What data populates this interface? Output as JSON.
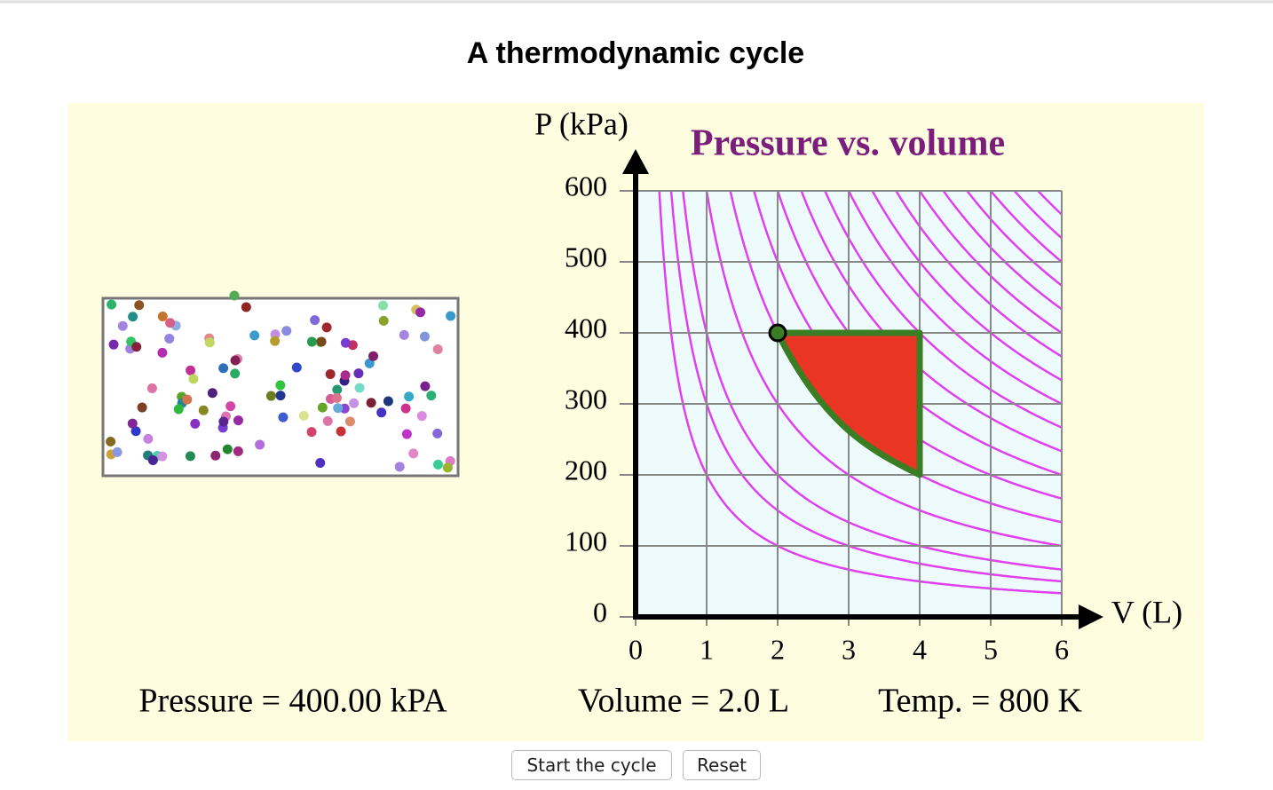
{
  "header": {
    "title": "A thermodynamic cycle"
  },
  "chart_data": {
    "type": "pv-cycle",
    "title": "Pressure vs. volume",
    "x_label": "V (L)",
    "y_label": "P (kPa)",
    "xlim": [
      0,
      6
    ],
    "xticks": [
      0,
      1,
      2,
      3,
      4,
      5,
      6
    ],
    "ylim": [
      0,
      600
    ],
    "yticks": [
      0,
      100,
      200,
      300,
      400,
      500,
      600
    ],
    "grid": true,
    "isotherms": [
      200,
      300,
      400,
      600,
      800,
      1000,
      1200,
      1400,
      1600,
      1800,
      2000,
      2200,
      2400,
      2600,
      2800,
      3000,
      3200,
      3400,
      3600
    ],
    "isotherm_color": "#e040f0",
    "cycle": {
      "x": [
        2,
        4,
        4
      ],
      "y": [
        400,
        400,
        200
      ],
      "fill": "#e83524",
      "stroke": "#3b7d23"
    },
    "state": {
      "x": 2,
      "y": 400
    }
  },
  "readouts": {
    "pressure": "Pressure = 400.00 kPA",
    "volume": "Volume = 2.0 L",
    "temperature": "Temp. = 800 K"
  },
  "buttons": {
    "start": "Start the cycle",
    "reset": "Reset"
  }
}
